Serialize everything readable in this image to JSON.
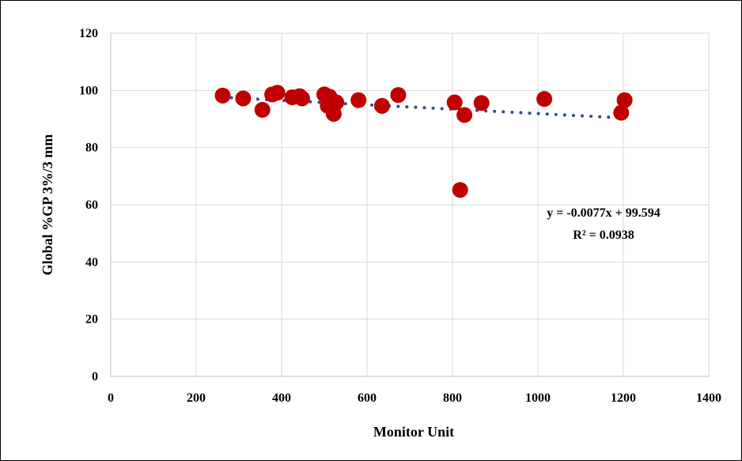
{
  "chart_data": {
    "type": "scatter",
    "xlabel": "Monitor Unit",
    "ylabel": "Global %GP 3%/3 mm",
    "xlim": [
      0,
      1400
    ],
    "ylim": [
      0,
      120
    ],
    "xticks": [
      0,
      200,
      400,
      600,
      800,
      1000,
      1200,
      1400
    ],
    "yticks": [
      0,
      20,
      40,
      60,
      80,
      100,
      120
    ],
    "grid": true,
    "legend": "none",
    "marker_color": "#c00000",
    "trend_color": "#2e4f8f",
    "points": [
      {
        "x": 262,
        "y": 98.2
      },
      {
        "x": 310,
        "y": 97.2
      },
      {
        "x": 355,
        "y": 93.2
      },
      {
        "x": 378,
        "y": 98.6
      },
      {
        "x": 390,
        "y": 99.2
      },
      {
        "x": 425,
        "y": 97.6
      },
      {
        "x": 442,
        "y": 98.0
      },
      {
        "x": 448,
        "y": 97.2
      },
      {
        "x": 500,
        "y": 98.6
      },
      {
        "x": 508,
        "y": 94.6
      },
      {
        "x": 512,
        "y": 97.8
      },
      {
        "x": 522,
        "y": 91.8
      },
      {
        "x": 528,
        "y": 95.8
      },
      {
        "x": 580,
        "y": 96.6
      },
      {
        "x": 635,
        "y": 94.6
      },
      {
        "x": 673,
        "y": 98.4
      },
      {
        "x": 805,
        "y": 95.8
      },
      {
        "x": 818,
        "y": 65.2
      },
      {
        "x": 828,
        "y": 91.4
      },
      {
        "x": 868,
        "y": 95.6
      },
      {
        "x": 1015,
        "y": 97.0
      },
      {
        "x": 1195,
        "y": 92.2
      },
      {
        "x": 1203,
        "y": 96.6
      }
    ],
    "trendline": {
      "type": "linear",
      "slope": -0.0077,
      "intercept": 99.594,
      "x_range": [
        262,
        1203
      ],
      "equation": "y = -0.0077x + 99.594",
      "r_squared": "R² = 0.0938"
    }
  }
}
